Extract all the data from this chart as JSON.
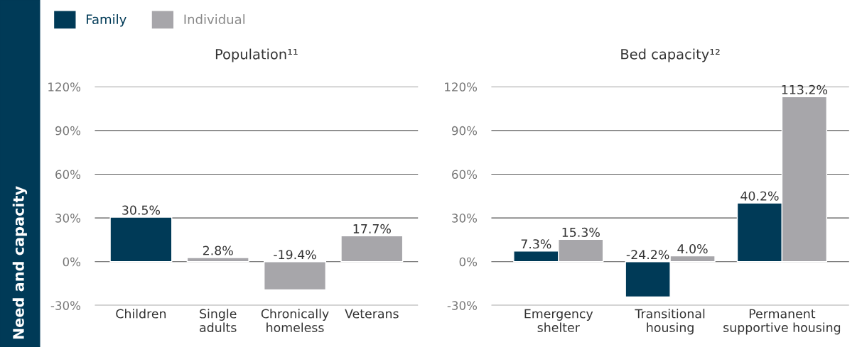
{
  "chart_data": [
    {
      "type": "bar",
      "title": "Population¹¹",
      "categories": [
        "Children",
        "Single\nadults",
        "Chronically\nhomeless",
        "Veterans"
      ],
      "values": [
        30.5,
        2.8,
        -19.4,
        17.7
      ],
      "colors": [
        "#003a57",
        "#a7a6aa",
        "#a7a6aa",
        "#a7a6aa"
      ],
      "value_labels": [
        "30.5%",
        "2.8%",
        "-19.4%",
        "17.7%"
      ],
      "ylim": [
        -30,
        120
      ],
      "yticks": [
        {
          "value": -30,
          "label": "-30%"
        },
        {
          "value": 0,
          "label": "0%"
        },
        {
          "value": 30,
          "label": "30%"
        },
        {
          "value": 60,
          "label": "60%"
        },
        {
          "value": 90,
          "label": "90%"
        },
        {
          "value": 120,
          "label": "120%"
        }
      ],
      "grid": "y",
      "annotations": [
        "Need and capacity"
      ]
    },
    {
      "type": "bar",
      "title": "Bed capacity¹²",
      "categories": [
        "Emergency\nshelter",
        "Transitional\nhousing",
        "Permanent\nsupportive housing"
      ],
      "series": [
        {
          "name": "Family",
          "color": "#003a57",
          "values": [
            7.3,
            -24.2,
            40.2
          ],
          "value_labels": [
            "7.3%",
            "-24.2%",
            "40.2%"
          ]
        },
        {
          "name": "Individual",
          "color": "#a7a6aa",
          "values": [
            15.3,
            4.0,
            113.2
          ],
          "value_labels": [
            "15.3%",
            "4.0%",
            "113.2%"
          ]
        }
      ],
      "ylim": [
        -30,
        120
      ],
      "yticks": [
        {
          "value": -30,
          "label": "-30%"
        },
        {
          "value": 0,
          "label": "0%"
        },
        {
          "value": 30,
          "label": "30%"
        },
        {
          "value": 60,
          "label": "60%"
        },
        {
          "value": 90,
          "label": "90%"
        },
        {
          "value": 120,
          "label": "120%"
        }
      ],
      "grid": "y",
      "legend": "top left"
    }
  ]
}
